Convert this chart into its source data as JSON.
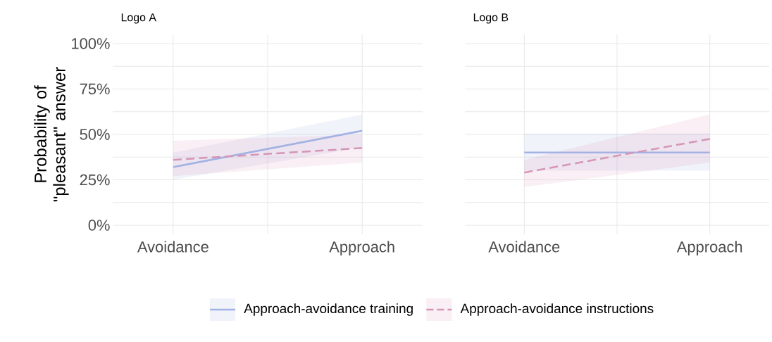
{
  "chart_data": [
    {
      "type": "line",
      "title": "Logo A",
      "ylabel": "Probability of \"pleasant\" answer",
      "categories": [
        "Avoidance",
        "Approach"
      ],
      "ylim": [
        -5,
        105
      ],
      "yticks": [
        {
          "value": 0,
          "label": "0%"
        },
        {
          "value": 12.5,
          "label": null
        },
        {
          "value": 25,
          "label": "25%"
        },
        {
          "value": 37.5,
          "label": null
        },
        {
          "value": 50,
          "label": "50%"
        },
        {
          "value": 62.5,
          "label": null
        },
        {
          "value": 75,
          "label": "75%"
        },
        {
          "value": 87.5,
          "label": null
        },
        {
          "value": 100,
          "label": "100%"
        }
      ],
      "grid": true,
      "legend": "bottom",
      "series": [
        {
          "name": "Approach-avoidance training",
          "color": "#a3b1e3",
          "line_style": "solid",
          "values": [
            32,
            52
          ],
          "lower": [
            25,
            43
          ],
          "upper": [
            40,
            61
          ]
        },
        {
          "name": "Approach-avoidance instructions",
          "color": "#d595b5",
          "line_style": "dashed",
          "values": [
            36,
            42.5
          ],
          "lower": [
            27,
            34.5
          ],
          "upper": [
            46.5,
            50
          ]
        }
      ]
    },
    {
      "type": "line",
      "title": "Logo B",
      "categories": [
        "Avoidance",
        "Approach"
      ],
      "ylim": [
        -5,
        105
      ],
      "yticks": [
        {
          "value": 0,
          "label": null
        },
        {
          "value": 12.5,
          "label": null
        },
        {
          "value": 25,
          "label": null
        },
        {
          "value": 37.5,
          "label": null
        },
        {
          "value": 50,
          "label": null
        },
        {
          "value": 62.5,
          "label": null
        },
        {
          "value": 75,
          "label": null
        },
        {
          "value": 87.5,
          "label": null
        },
        {
          "value": 100,
          "label": null
        }
      ],
      "grid": true,
      "tick_labels": "x",
      "series": [
        {
          "color": "#a3b1e3",
          "line_style": "solid",
          "values": [
            40,
            40
          ],
          "lower": [
            30,
            30
          ],
          "upper": [
            50.5,
            50.5
          ]
        },
        {
          "color": "#d595b5",
          "line_style": "dashed",
          "values": [
            29,
            47.5
          ],
          "lower": [
            21,
            34.5
          ],
          "upper": [
            36,
            61
          ]
        }
      ]
    }
  ]
}
